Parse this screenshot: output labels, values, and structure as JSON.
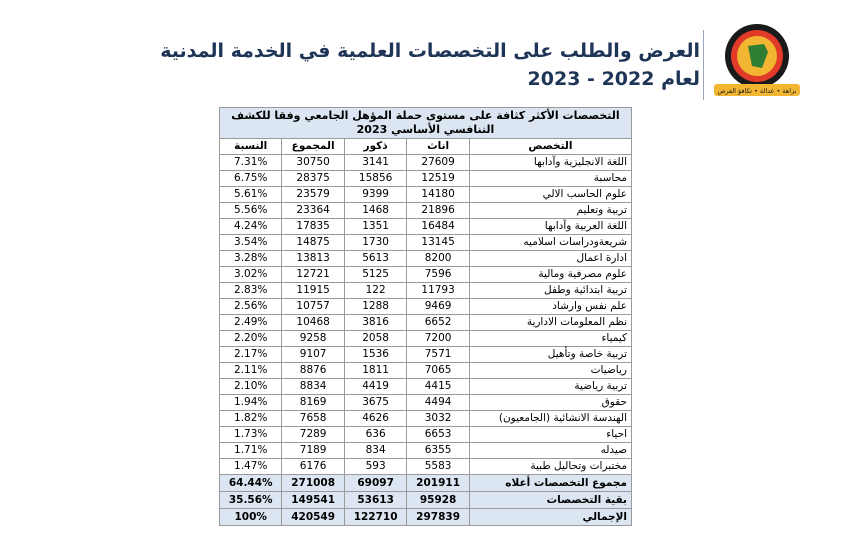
{
  "header": {
    "title": "العرض والطلب على التخصصات العلمية في الخدمة المدنية",
    "subtitle": "لعام 2022 - 2023"
  },
  "logo": {
    "motto": "نزاهة • عدالة • تكافؤ الفرص"
  },
  "table": {
    "caption": "التخصصات الأكثر كثافة على مستوى حملة المؤهل الجامعي وفقا للكشف التنافسي الأساسي 2023",
    "columns": [
      "التخصص",
      "اناث",
      "ذكور",
      "المجموع",
      "النسبة"
    ],
    "rows": [
      [
        "اللغة الانجليزية وآدابها",
        "27609",
        "3141",
        "30750",
        "7.31%"
      ],
      [
        "محاسبة",
        "12519",
        "15856",
        "28375",
        "6.75%"
      ],
      [
        "علوم الحاسب الالي",
        "14180",
        "9399",
        "23579",
        "5.61%"
      ],
      [
        "تربية وتعليم",
        "21896",
        "1468",
        "23364",
        "5.56%"
      ],
      [
        "اللغة العربية وآدابها",
        "16484",
        "1351",
        "17835",
        "4.24%"
      ],
      [
        "شريعةودراسات اسلاميه",
        "13145",
        "1730",
        "14875",
        "3.54%"
      ],
      [
        "ادارة اعمال",
        "8200",
        "5613",
        "13813",
        "3.28%"
      ],
      [
        "علوم مصرفية ومالية",
        "7596",
        "5125",
        "12721",
        "3.02%"
      ],
      [
        "تربية ابتدائية وطفل",
        "11793",
        "122",
        "11915",
        "2.83%"
      ],
      [
        "علم نفس وارشاد",
        "9469",
        "1288",
        "10757",
        "2.56%"
      ],
      [
        "نظم المعلومات الادارية",
        "6652",
        "3816",
        "10468",
        "2.49%"
      ],
      [
        "كيمياء",
        "7200",
        "2058",
        "9258",
        "2.20%"
      ],
      [
        "تربية خاصة وتأهيل",
        "7571",
        "1536",
        "9107",
        "2.17%"
      ],
      [
        "رياضيات",
        "7065",
        "1811",
        "8876",
        "2.11%"
      ],
      [
        "تربية رياضية",
        "4415",
        "4419",
        "8834",
        "2.10%"
      ],
      [
        "حقوق",
        "4494",
        "3675",
        "8169",
        "1.94%"
      ],
      [
        "الهندسة الانشائية (الجامعيون)",
        "3032",
        "4626",
        "7658",
        "1.82%"
      ],
      [
        "احياء",
        "6653",
        "636",
        "7289",
        "1.73%"
      ],
      [
        "صيدله",
        "6355",
        "834",
        "7189",
        "1.71%"
      ],
      [
        "مختبرات وتحاليل طبية",
        "5583",
        "593",
        "6176",
        "1.47%"
      ]
    ],
    "footer": [
      [
        "مجموع التخصصات أعلاه",
        "201911",
        "69097",
        "271008",
        "64.44%"
      ],
      [
        "بقية التخصصات",
        "95928",
        "53613",
        "149541",
        "35.56%"
      ],
      [
        "الإجمالي",
        "297839",
        "122710",
        "420549",
        "100%"
      ]
    ]
  }
}
